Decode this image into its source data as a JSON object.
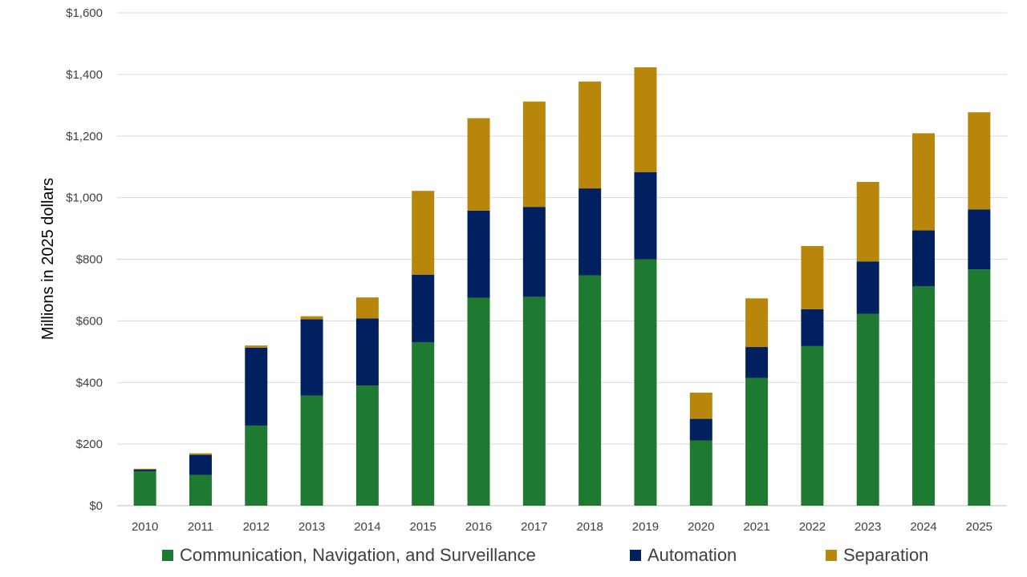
{
  "chart_data": {
    "type": "bar",
    "stacked": true,
    "categories": [
      "2010",
      "2011",
      "2012",
      "2013",
      "2014",
      "2015",
      "2016",
      "2017",
      "2018",
      "2019",
      "2020",
      "2021",
      "2022",
      "2023",
      "2024",
      "2025"
    ],
    "series": [
      {
        "name": "Communication, Navigation, and Surveillance",
        "color": "#1f7a31",
        "values": [
          112,
          100,
          260,
          357,
          390,
          530,
          675,
          678,
          748,
          800,
          212,
          415,
          518,
          623,
          712,
          767
        ]
      },
      {
        "name": "Automation",
        "color": "#002060",
        "values": [
          5,
          65,
          253,
          248,
          218,
          220,
          283,
          292,
          282,
          283,
          70,
          100,
          120,
          170,
          182,
          195
        ]
      },
      {
        "name": "Separation",
        "color": "#b8860b",
        "values": [
          3,
          5,
          7,
          10,
          68,
          272,
          300,
          342,
          347,
          340,
          85,
          158,
          205,
          258,
          315,
          315
        ]
      }
    ],
    "ylabel": "Millions in 2025 dollars",
    "xlabel": "",
    "title": "",
    "ylim": [
      0,
      1600
    ],
    "yticks": [
      0,
      200,
      400,
      600,
      800,
      1000,
      1200,
      1400,
      1600
    ],
    "ytick_labels": [
      "$0",
      "$200",
      "$400",
      "$600",
      "$800",
      "$1,000",
      "$1,200",
      "$1,400",
      "$1,600"
    ],
    "grid": "horizontal",
    "legend_position": "bottom"
  }
}
